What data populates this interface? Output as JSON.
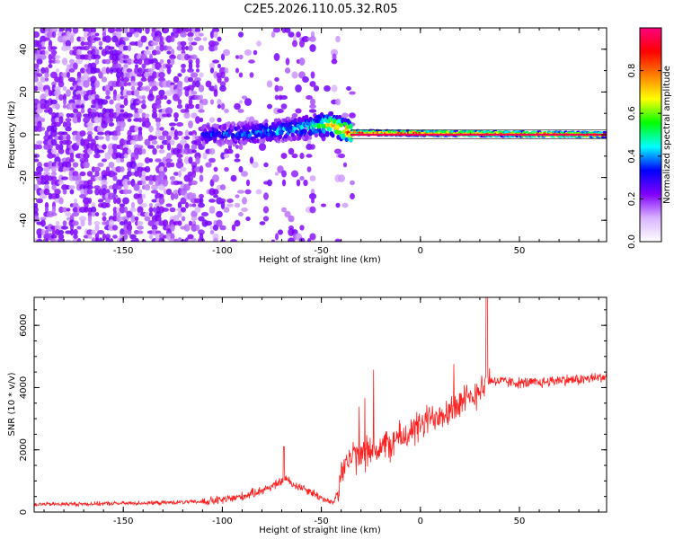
{
  "figure": {
    "title": "C2E5.2026.110.05.32.R05"
  },
  "chart_data": [
    {
      "type": "heatmap",
      "xlabel": "Height of straight line (km)",
      "ylabel": "Frequency (Hz)",
      "xlim": [
        -195,
        94
      ],
      "ylim": [
        -50,
        50
      ],
      "xticks": [
        -150,
        -100,
        -50,
        0,
        50
      ],
      "yticks": [
        -40,
        -20,
        0,
        20,
        40
      ],
      "colorbar": {
        "label": "Normalized spectral amplitude",
        "range": [
          0,
          1
        ],
        "ticks": [
          0.0,
          0.2,
          0.4,
          0.6,
          0.8
        ],
        "tick_labels": [
          "0.0",
          "0.2",
          "0.4",
          "0.6",
          "0.8"
        ],
        "colormap": [
          "#ffffff",
          "#d9b3ff",
          "#8000ff",
          "#0000ff",
          "#00ffff",
          "#00ff00",
          "#ffff00",
          "#ff8000",
          "#ff0000",
          "#ff0080"
        ]
      },
      "ridge": [
        {
          "x": -110,
          "f": 0,
          "amp": 0.35
        },
        {
          "x": -90,
          "f": 0.5,
          "amp": 0.4
        },
        {
          "x": -70,
          "f": 2,
          "amp": 0.45
        },
        {
          "x": -55,
          "f": 4,
          "amp": 0.5
        },
        {
          "x": -45,
          "f": 5,
          "amp": 0.75
        },
        {
          "x": -35,
          "f": 1,
          "amp": 0.9
        },
        {
          "x": 94,
          "f": 0,
          "amp": 0.95
        }
      ]
    },
    {
      "type": "line",
      "xlabel": "Height of straight line (km)",
      "ylabel": "SNR (10 * v/v)",
      "xlim": [
        -195,
        94
      ],
      "ylim": [
        0,
        6900
      ],
      "xticks": [
        -150,
        -100,
        -50,
        0,
        50
      ],
      "yticks": [
        0,
        2000,
        4000,
        6000
      ],
      "color": "#ff2020",
      "series": [
        {
          "x": [
            -195,
            -170,
            -150,
            -130,
            -110,
            -100,
            -90,
            -80,
            -72,
            -68,
            -65,
            -60,
            -55,
            -50,
            -47,
            -44,
            -42,
            -40,
            -35,
            -30,
            -25,
            -20,
            -15,
            -10,
            -5,
            0,
            5,
            10,
            15,
            20,
            25,
            28,
            30,
            33,
            35,
            40,
            50,
            60,
            70,
            80,
            94
          ],
          "y": [
            250,
            260,
            280,
            300,
            330,
            380,
            500,
            700,
            900,
            1100,
            900,
            800,
            650,
            450,
            350,
            300,
            600,
            1400,
            1750,
            1800,
            2000,
            2050,
            2200,
            2400,
            2550,
            2750,
            3000,
            3200,
            3300,
            3500,
            3600,
            3800,
            4100,
            4000,
            4250,
            4200,
            4150,
            4150,
            4250,
            4250,
            4350
          ]
        }
      ]
    }
  ]
}
